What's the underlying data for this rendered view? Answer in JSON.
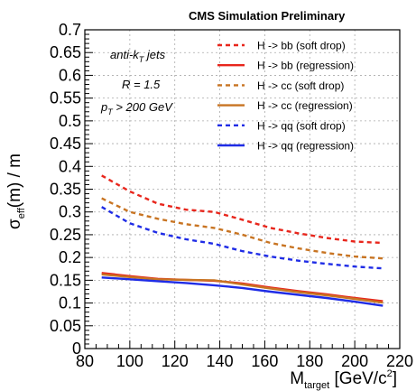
{
  "chart_data": {
    "type": "line",
    "header": "CMS Simulation Preliminary",
    "xlabel": {
      "main": "M",
      "sub": "target",
      "unit_pre": " [GeV/c",
      "unit_sup": "2",
      "unit_post": "]"
    },
    "ylabel": {
      "main": "σ",
      "sub": "eff",
      "rest": "(m) / m"
    },
    "xlim": [
      80,
      220
    ],
    "ylim": [
      0,
      0.7
    ],
    "xticks": [
      "80",
      "100",
      "120",
      "140",
      "160",
      "180",
      "200",
      "220"
    ],
    "yticks": [
      "0",
      "0.05",
      "0.1",
      "0.15",
      "0.2",
      "0.25",
      "0.3",
      "0.35",
      "0.4",
      "0.45",
      "0.5",
      "0.55",
      "0.6",
      "0.65",
      "0.7"
    ],
    "grid": true,
    "legend_position": "top-right",
    "annotations": {
      "line1_pre": "anti-k",
      "line1_sub": "T",
      "line1_post": " jets",
      "line2": "R = 1.5",
      "line3_pre": "p",
      "line3_sub": "T",
      "line3_post": " > 200 GeV"
    },
    "x": [
      87.5,
      100,
      112.5,
      125,
      137.5,
      150,
      162.5,
      175,
      187.5,
      200,
      212.5
    ],
    "series": [
      {
        "name": "H -> bb  (soft drop)",
        "color": "#e8261c",
        "dash": true,
        "values": [
          0.38,
          0.345,
          0.318,
          0.305,
          0.3,
          0.283,
          0.265,
          0.253,
          0.243,
          0.235,
          0.232
        ]
      },
      {
        "name": "H -> bb  (regression)",
        "color": "#e8261c",
        "dash": false,
        "values": [
          0.166,
          0.159,
          0.153,
          0.151,
          0.149,
          0.143,
          0.134,
          0.126,
          0.119,
          0.111,
          0.104
        ]
      },
      {
        "name": "H -> cc  (soft drop)",
        "color": "#c87422",
        "dash": true,
        "values": [
          0.33,
          0.3,
          0.285,
          0.273,
          0.265,
          0.25,
          0.232,
          0.22,
          0.21,
          0.202,
          0.198
        ]
      },
      {
        "name": "H -> cc  (regression)",
        "color": "#c87422",
        "dash": false,
        "values": [
          0.163,
          0.157,
          0.152,
          0.151,
          0.15,
          0.141,
          0.132,
          0.124,
          0.117,
          0.109,
          0.101
        ]
      },
      {
        "name": "H -> qq  (soft drop)",
        "color": "#1f2ce6",
        "dash": true,
        "values": [
          0.311,
          0.275,
          0.254,
          0.24,
          0.23,
          0.214,
          0.202,
          0.193,
          0.186,
          0.18,
          0.176
        ]
      },
      {
        "name": "H -> qq  (regression)",
        "color": "#1f2ce6",
        "dash": false,
        "values": [
          0.156,
          0.152,
          0.148,
          0.144,
          0.139,
          0.133,
          0.125,
          0.118,
          0.111,
          0.103,
          0.094
        ]
      }
    ]
  }
}
